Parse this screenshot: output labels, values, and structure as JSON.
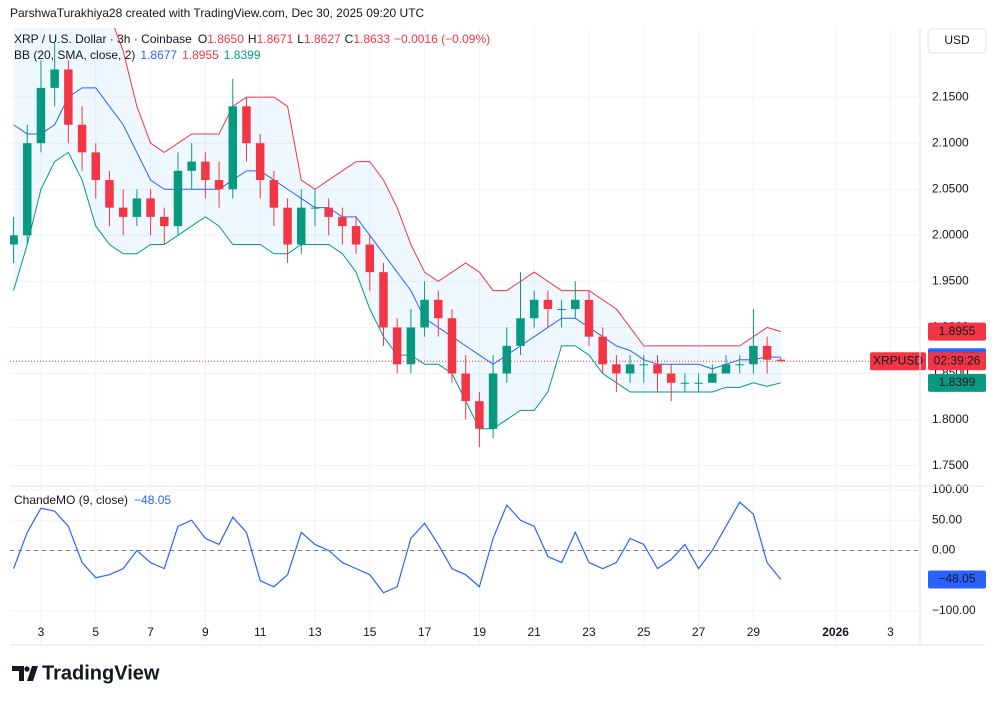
{
  "header": {
    "attribution": "ParshwaTurakhiya28 created with TradingView.com, Dec 30, 2025 09:20 UTC"
  },
  "chart_data": [
    {
      "type": "candlestick",
      "title": "XRP / U.S. Dollar · 3h · Coinbase",
      "currency": "USD",
      "symbol": "XRPUSD",
      "countdown": "02:39:26",
      "ohlc_legend": {
        "labels": [
          "O",
          "H",
          "L",
          "C"
        ],
        "values": [
          1.865,
          1.8671,
          1.8627,
          1.8633
        ],
        "value_labels": [
          "1.8650",
          "1.8671",
          "1.8627",
          "1.8633"
        ],
        "change_label": "−0.0016 (−0.09%)"
      },
      "up_color": "#089981",
      "down_color": "#f23645",
      "x": [
        2,
        2.5,
        3,
        3.5,
        4,
        4.5,
        5,
        5.5,
        6,
        6.5,
        7,
        7.5,
        8,
        8.5,
        9,
        9.5,
        10,
        10.5,
        11,
        11.5,
        12,
        12.5,
        13,
        13.5,
        14,
        14.5,
        15,
        15.5,
        16,
        16.5,
        17,
        17.5,
        18,
        18.5,
        19,
        19.5,
        20,
        20.5,
        21,
        21.5,
        22,
        22.5,
        23,
        23.5,
        24,
        24.5,
        25,
        25.5,
        26,
        26.5,
        27,
        27.5,
        28,
        28.5,
        29,
        29.5,
        30
      ],
      "open": [
        1.99,
        2,
        2.1,
        2.16,
        2.18,
        2.12,
        2.09,
        2.06,
        2.03,
        2.02,
        2.04,
        2.02,
        2.01,
        2.07,
        2.08,
        2.06,
        2.05,
        2.14,
        2.1,
        2.06,
        2.03,
        1.99,
        2.03,
        2.03,
        2.02,
        2.01,
        1.99,
        1.96,
        1.9,
        1.86,
        1.9,
        1.93,
        1.91,
        1.85,
        1.82,
        1.79,
        1.85,
        1.88,
        1.91,
        1.93,
        1.92,
        1.92,
        1.93,
        1.89,
        1.86,
        1.85,
        1.86,
        1.86,
        1.85,
        1.84,
        1.84,
        1.84,
        1.85,
        1.86,
        1.86,
        1.88,
        1.865
      ],
      "high": [
        2.02,
        2.12,
        2.19,
        2.21,
        2.19,
        2.14,
        2.1,
        2.07,
        2.05,
        2.05,
        2.05,
        2.03,
        2.09,
        2.1,
        2.09,
        2.08,
        2.17,
        2.15,
        2.11,
        2.07,
        2.04,
        2.05,
        2.05,
        2.04,
        2.03,
        2.02,
        2,
        1.97,
        1.91,
        1.92,
        1.95,
        1.94,
        1.92,
        1.87,
        1.83,
        1.87,
        1.9,
        1.96,
        1.94,
        1.94,
        1.93,
        1.95,
        1.94,
        1.9,
        1.87,
        1.87,
        1.87,
        1.87,
        1.86,
        1.85,
        1.85,
        1.86,
        1.87,
        1.87,
        1.92,
        1.89,
        1.8671
      ],
      "low": [
        1.97,
        1.99,
        2.09,
        2.14,
        2.1,
        2.07,
        2.04,
        2.01,
        2,
        2.01,
        2,
        1.99,
        2,
        2.05,
        2.04,
        2.03,
        2.04,
        2.08,
        2.04,
        2.01,
        1.97,
        1.98,
        2.01,
        2,
        1.99,
        1.98,
        1.94,
        1.88,
        1.85,
        1.85,
        1.89,
        1.89,
        1.84,
        1.8,
        1.77,
        1.78,
        1.84,
        1.87,
        1.9,
        1.9,
        1.9,
        1.91,
        1.88,
        1.85,
        1.83,
        1.84,
        1.84,
        1.83,
        1.82,
        1.83,
        1.83,
        1.84,
        1.85,
        1.85,
        1.85,
        1.85,
        1.8627
      ],
      "close": [
        2,
        2.1,
        2.16,
        2.18,
        2.12,
        2.09,
        2.06,
        2.03,
        2.02,
        2.04,
        2.02,
        2.01,
        2.07,
        2.08,
        2.06,
        2.05,
        2.14,
        2.1,
        2.06,
        2.03,
        1.99,
        2.03,
        2.03,
        2.02,
        2.01,
        1.99,
        1.96,
        1.9,
        1.86,
        1.9,
        1.93,
        1.91,
        1.85,
        1.82,
        1.79,
        1.85,
        1.88,
        1.91,
        1.93,
        1.92,
        1.92,
        1.93,
        1.89,
        1.86,
        1.85,
        1.86,
        1.86,
        1.85,
        1.84,
        1.84,
        1.84,
        1.85,
        1.86,
        1.86,
        1.88,
        1.865,
        1.8633
      ],
      "indicator": {
        "label": "BB (20, SMA, close, 2)",
        "fill": "rgba(33,150,243,0.07)",
        "series": [
          {
            "color": "#2962ff",
            "values": [
              2.12,
              2.11,
              2.11,
              2.12,
              2.15,
              2.16,
              2.16,
              2.14,
              2.12,
              2.09,
              2.06,
              2.05,
              2.05,
              2.05,
              2.05,
              2.05,
              2.06,
              2.07,
              2.07,
              2.06,
              2.05,
              2.04,
              2.03,
              2.03,
              2.02,
              2.02,
              2,
              1.98,
              1.96,
              1.94,
              1.91,
              1.9,
              1.89,
              1.88,
              1.87,
              1.86,
              1.87,
              1.88,
              1.89,
              1.9,
              1.91,
              1.91,
              1.9,
              1.89,
              1.88,
              1.875,
              1.865,
              1.86,
              1.86,
              1.86,
              1.86,
              1.855,
              1.86,
              1.865,
              1.865,
              1.868,
              1.8677
            ]
          },
          {
            "color": "#f23645",
            "values": [
              2.26,
              2.27,
              2.28,
              2.29,
              2.28,
              2.27,
              2.26,
              2.24,
              2.2,
              2.14,
              2.1,
              2.09,
              2.1,
              2.11,
              2.11,
              2.11,
              2.14,
              2.15,
              2.15,
              2.15,
              2.14,
              2.06,
              2.05,
              2.06,
              2.07,
              2.08,
              2.08,
              2.06,
              2.03,
              1.99,
              1.96,
              1.95,
              1.96,
              1.97,
              1.96,
              1.94,
              1.94,
              1.95,
              1.96,
              1.95,
              1.94,
              1.94,
              1.94,
              1.93,
              1.92,
              1.9,
              1.88,
              1.88,
              1.88,
              1.88,
              1.88,
              1.88,
              1.88,
              1.88,
              1.89,
              1.9,
              1.8955
            ]
          },
          {
            "color": "#089981",
            "values": [
              1.94,
              1.99,
              2.05,
              2.08,
              2.09,
              2.06,
              2.01,
              1.99,
              1.98,
              1.98,
              1.99,
              1.99,
              2,
              2.01,
              2.02,
              2.01,
              1.99,
              1.99,
              1.99,
              1.98,
              1.98,
              1.99,
              1.99,
              1.99,
              1.98,
              1.96,
              1.92,
              1.89,
              1.87,
              1.87,
              1.86,
              1.86,
              1.85,
              1.82,
              1.79,
              1.79,
              1.8,
              1.81,
              1.81,
              1.83,
              1.88,
              1.88,
              1.87,
              1.85,
              1.84,
              1.83,
              1.83,
              1.83,
              1.83,
              1.83,
              1.83,
              1.83,
              1.835,
              1.835,
              1.84,
              1.836,
              1.8399
            ]
          }
        ]
      },
      "xlim": [
        1.87,
        35.08
      ],
      "xticks": [
        3,
        5,
        7,
        9,
        11,
        13,
        15,
        17,
        19,
        21,
        23,
        25,
        27,
        29,
        {
          "value": 32,
          "label": "2026"
        },
        {
          "value": 34,
          "label": "3"
        }
      ],
      "ylim": [
        1.729,
        2.225
      ],
      "yticks": [
        {
          "value": 1.75,
          "label": "1.7500"
        },
        {
          "value": 1.8,
          "label": "1.8000"
        },
        {
          "value": 1.85,
          "label": "1.8500"
        },
        {
          "value": 1.9,
          "label": "1.9000"
        },
        {
          "value": 1.95,
          "label": "1.9500"
        },
        {
          "value": 2,
          "label": "2.0000"
        },
        {
          "value": 2.05,
          "label": "2.0500"
        },
        {
          "value": 2.1,
          "label": "2.1000"
        },
        {
          "value": 2.15,
          "label": "2.1500"
        }
      ],
      "grid": true
    },
    {
      "type": "line",
      "title": "ChandeMO (9, close)",
      "color": "#2962ff",
      "values": [
        -30,
        30,
        70,
        65,
        40,
        -20,
        -45,
        -40,
        -30,
        0,
        -20,
        -30,
        40,
        50,
        20,
        10,
        55,
        30,
        -50,
        -60,
        -40,
        30,
        10,
        0,
        -20,
        -30,
        -40,
        -70,
        -60,
        20,
        45,
        10,
        -30,
        -40,
        -60,
        20,
        75,
        50,
        40,
        -10,
        -20,
        30,
        -20,
        -30,
        -20,
        20,
        10,
        -30,
        -15,
        10,
        -30,
        0,
        40,
        80,
        60,
        -20,
        -48.05
      ],
      "current_label": "−48.05",
      "reference_line": 0,
      "ylim": [
        -115,
        105
      ],
      "yticks": [
        {
          "value": 100,
          "label": "100.00"
        },
        {
          "value": 50,
          "label": "50.00"
        },
        {
          "value": 0,
          "label": "0.00"
        },
        {
          "value": -100,
          "label": "−100.00"
        }
      ]
    }
  ],
  "footer": {
    "brand": "TradingView"
  }
}
